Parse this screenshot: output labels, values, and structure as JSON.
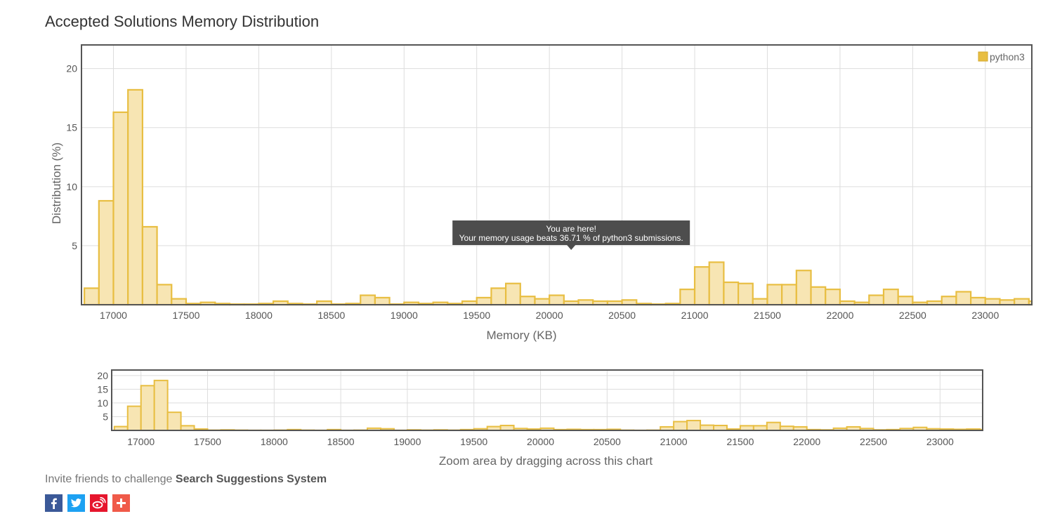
{
  "page": {
    "title": "Accepted Solutions Memory Distribution",
    "invite_prefix": "Invite friends to challenge ",
    "problem_name": "Search Suggestions System"
  },
  "share": [
    {
      "name": "facebook",
      "icon": "facebook-icon",
      "color": "#3b5998"
    },
    {
      "name": "twitter",
      "icon": "twitter-icon",
      "color": "#1da1f2"
    },
    {
      "name": "weibo",
      "icon": "weibo-icon",
      "color": "#e6162d"
    },
    {
      "name": "more",
      "icon": "plus-icon",
      "color": "#f05a49"
    }
  ],
  "tooltip": {
    "line1": "You are here!",
    "line2": "Your memory usage beats 36.71 % of python3 submissions.",
    "x": 20150
  },
  "colors": {
    "bar_fill": "#f7e5b3",
    "bar_stroke": "#e8be42",
    "frame": "#555555",
    "grid": "#dddddd",
    "tooltip_bg": "#4d4d4d"
  },
  "chart_data": [
    {
      "type": "bar",
      "role": "main",
      "xlabel": "Memory (KB)",
      "ylabel": "Distribution (%)",
      "legend": [
        "python3"
      ],
      "legend_position": "top-right",
      "grid": true,
      "xlim": [
        16780,
        23320
      ],
      "ylim": [
        0,
        22
      ],
      "xticks": [
        17000,
        17500,
        18000,
        18500,
        19000,
        19500,
        20000,
        20500,
        21000,
        21500,
        22000,
        22500,
        23000
      ],
      "yticks": [
        5,
        10,
        15,
        20
      ],
      "bin_width": 100,
      "x": [
        16800,
        16900,
        17000,
        17100,
        17200,
        17300,
        17400,
        17500,
        17600,
        17700,
        17800,
        17900,
        18000,
        18100,
        18200,
        18300,
        18400,
        18500,
        18600,
        18700,
        18800,
        18900,
        19000,
        19100,
        19200,
        19300,
        19400,
        19500,
        19600,
        19700,
        19800,
        19900,
        20000,
        20100,
        20200,
        20300,
        20400,
        20500,
        20600,
        20700,
        20800,
        20900,
        21000,
        21100,
        21200,
        21300,
        21400,
        21500,
        21600,
        21700,
        21800,
        21900,
        22000,
        22100,
        22200,
        22300,
        22400,
        22500,
        22600,
        22700,
        22800,
        22900,
        23000,
        23100,
        23200,
        23300
      ],
      "series": [
        {
          "name": "python3",
          "values": [
            1.4,
            8.8,
            16.3,
            18.2,
            6.6,
            1.7,
            0.5,
            0.1,
            0.2,
            0.1,
            0.05,
            0.05,
            0.1,
            0.3,
            0.1,
            0.05,
            0.3,
            0.05,
            0.1,
            0.8,
            0.6,
            0.05,
            0.2,
            0.1,
            0.2,
            0.1,
            0.3,
            0.6,
            1.4,
            1.8,
            0.7,
            0.5,
            0.8,
            0.3,
            0.4,
            0.3,
            0.3,
            0.4,
            0.1,
            0.05,
            0.1,
            1.3,
            3.2,
            3.6,
            1.9,
            1.8,
            0.5,
            1.7,
            1.7,
            2.9,
            1.5,
            1.3,
            0.3,
            0.2,
            0.8,
            1.3,
            0.7,
            0.2,
            0.3,
            0.7,
            1.1,
            0.6,
            0.5,
            0.4,
            0.5,
            0.3
          ]
        }
      ]
    },
    {
      "type": "bar",
      "role": "navigator",
      "caption": "Zoom area by dragging across this chart",
      "xlim": [
        16780,
        23320
      ],
      "ylim": [
        0,
        22
      ],
      "xticks": [
        17000,
        17500,
        18000,
        18500,
        19000,
        19500,
        20000,
        20500,
        21000,
        21500,
        22000,
        22500,
        23000
      ],
      "yticks": [
        5,
        10,
        15,
        20
      ]
    }
  ]
}
